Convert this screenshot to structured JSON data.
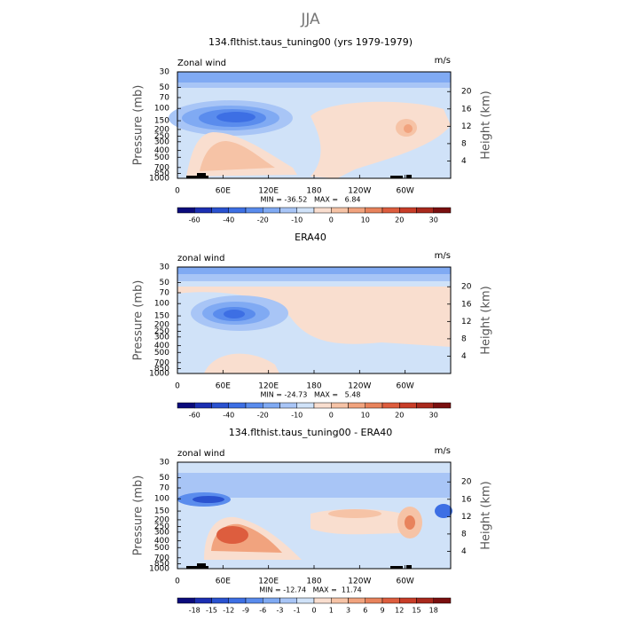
{
  "title": "JJA",
  "chart_data": [
    {
      "type": "contour",
      "title": "134.flthist.taus_tuning00 (yrs 1979-1979)",
      "label_left": "Zonal wind",
      "units": "m/s",
      "ylabel": "Pressure (mb)",
      "y2label": "Height (km)",
      "yscale": "log",
      "ylim": [
        1000,
        30
      ],
      "yticks": [
        30,
        50,
        70,
        100,
        150,
        200,
        250,
        300,
        400,
        500,
        700,
        850,
        1000
      ],
      "y2lim": [
        0,
        24.55
      ],
      "y2ticks": [
        4,
        8,
        12,
        16,
        20
      ],
      "xlim": [
        0,
        360
      ],
      "xticks": [
        0,
        {
          "value": 60,
          "label": "60E"
        },
        {
          "value": 120,
          "label": "120E"
        },
        180,
        {
          "value": 240,
          "label": "120W"
        },
        {
          "value": 300,
          "label": "60W"
        }
      ],
      "stats": "MIN = -36.52   MAX =   6.84",
      "colorbar": {
        "colors": [
          "#0b0b7c",
          "#1c2fb2",
          "#2a52d0",
          "#3d6fe4",
          "#5a8ced",
          "#80aaf3",
          "#a8c5f6",
          "#d0e2f8",
          "#f9decf",
          "#f6c3a6",
          "#f1a37e",
          "#e8835c",
          "#dd5d3e",
          "#c83d28",
          "#a9291d",
          "#7a0f0f"
        ],
        "labels": [
          -60,
          -40,
          -20,
          -10,
          0,
          10,
          20,
          30
        ]
      }
    },
    {
      "type": "contour",
      "title": "ERA40",
      "label_left": "zonal wind",
      "units": "m/s",
      "ylabel": "Pressure (mb)",
      "y2label": "Height (km)",
      "yscale": "log",
      "ylim": [
        1000,
        30
      ],
      "yticks": [
        30,
        50,
        70,
        100,
        150,
        200,
        250,
        300,
        400,
        500,
        700,
        850,
        1000
      ],
      "y2lim": [
        0,
        24.55
      ],
      "y2ticks": [
        4,
        8,
        12,
        16,
        20
      ],
      "xlim": [
        0,
        360
      ],
      "xticks": [
        0,
        {
          "value": 60,
          "label": "60E"
        },
        {
          "value": 120,
          "label": "120E"
        },
        180,
        {
          "value": 240,
          "label": "120W"
        },
        {
          "value": 300,
          "label": "60W"
        }
      ],
      "stats": "MIN = -24.73   MAX =   5.48",
      "colorbar": {
        "colors": [
          "#0b0b7c",
          "#1c2fb2",
          "#2a52d0",
          "#3d6fe4",
          "#5a8ced",
          "#80aaf3",
          "#a8c5f6",
          "#d0e2f8",
          "#f9decf",
          "#f6c3a6",
          "#f1a37e",
          "#e8835c",
          "#dd5d3e",
          "#c83d28",
          "#a9291d",
          "#7a0f0f"
        ],
        "labels": [
          -60,
          -40,
          -20,
          -10,
          0,
          10,
          20,
          30
        ]
      }
    },
    {
      "type": "contour",
      "title": "134.flthist.taus_tuning00 - ERA40",
      "label_left": "zonal wind",
      "units": "m/s",
      "ylabel": "Pressure (mb)",
      "y2label": "Height (km)",
      "yscale": "log",
      "ylim": [
        1000,
        30
      ],
      "yticks": [
        30,
        50,
        70,
        100,
        150,
        200,
        250,
        300,
        400,
        500,
        700,
        850,
        1000
      ],
      "y2lim": [
        0,
        24.55
      ],
      "y2ticks": [
        4,
        8,
        12,
        16,
        20
      ],
      "xlim": [
        0,
        360
      ],
      "xticks": [
        0,
        {
          "value": 60,
          "label": "60E"
        },
        {
          "value": 120,
          "label": "120E"
        },
        180,
        {
          "value": 240,
          "label": "120W"
        },
        {
          "value": 300,
          "label": "60W"
        }
      ],
      "stats": "MIN = -12.74   MAX =  11.74",
      "colorbar": {
        "colors": [
          "#0b0b7c",
          "#1c2fb2",
          "#2a52d0",
          "#3d6fe4",
          "#5a8ced",
          "#80aaf3",
          "#a8c5f6",
          "#d0e2f8",
          "#f9decf",
          "#f6c3a6",
          "#f1a37e",
          "#e8835c",
          "#dd5d3e",
          "#c83d28",
          "#a9291d",
          "#7a0f0f"
        ],
        "labels": [
          -18,
          -15,
          -12,
          -9,
          -6,
          -3,
          -1,
          0,
          1,
          3,
          6,
          9,
          12,
          15,
          18
        ]
      }
    }
  ]
}
